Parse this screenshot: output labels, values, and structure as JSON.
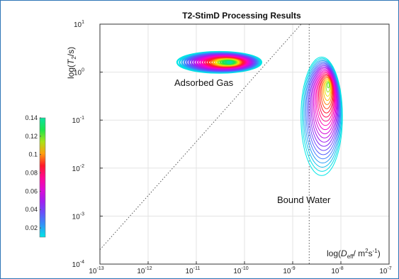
{
  "chart_data": {
    "type": "contour",
    "title": "T2-StimD Processing Results",
    "xlabel": {
      "prefix": "log(",
      "var": "D",
      "sub": "eff",
      "units": "/ m",
      "p1": "2",
      "mid": "s",
      "p2": "-1",
      "suffix": ")"
    },
    "ylabel": {
      "prefix": "log(",
      "var": "T",
      "sub": "2",
      "suffix": "/s)"
    },
    "x_scale": "log",
    "y_scale": "log",
    "xlim": [
      1e-13,
      1e-07
    ],
    "ylim": [
      0.0001,
      10
    ],
    "x_ticks": [
      {
        "base": "10",
        "exp": "-13",
        "value": 1e-13
      },
      {
        "base": "10",
        "exp": "-12",
        "value": 1e-12
      },
      {
        "base": "10",
        "exp": "-11",
        "value": 1e-11
      },
      {
        "base": "10",
        "exp": "-10",
        "value": 1e-10
      },
      {
        "base": "10",
        "exp": "-9",
        "value": 1e-09
      },
      {
        "base": "10",
        "exp": "-8",
        "value": 1e-08
      },
      {
        "base": "10",
        "exp": "-7",
        "value": 1e-07
      }
    ],
    "y_ticks": [
      {
        "base": "10",
        "exp": "-4",
        "value": 0.0001
      },
      {
        "base": "10",
        "exp": "-3",
        "value": 0.001
      },
      {
        "base": "10",
        "exp": "-2",
        "value": 0.01
      },
      {
        "base": "10",
        "exp": "-1",
        "value": 0.1
      },
      {
        "base": "10",
        "exp": "0",
        "value": 1
      },
      {
        "base": "10",
        "exp": "1",
        "value": 10
      }
    ],
    "grid": true,
    "reference_lines": [
      {
        "kind": "diagonal",
        "from": [
          1e-13,
          0.0002
        ],
        "to": [
          1.5e-09,
          10
        ]
      },
      {
        "kind": "vertical",
        "x": 2.2e-09
      }
    ],
    "colorbar": {
      "min": 0.01,
      "max": 0.14,
      "ticks": [
        "0.14",
        "0.12",
        "0.1",
        "0.08",
        "0.06",
        "0.04",
        "0.02"
      ],
      "tick_values": [
        0.14,
        0.12,
        0.1,
        0.08,
        0.06,
        0.04,
        0.02
      ]
    },
    "clusters": [
      {
        "label": "Adsorbed Gas",
        "center_x": 3e-11,
        "center_y": 1.6,
        "x_range": [
          4e-12,
          6e-11
        ],
        "y_range": [
          1.0,
          2.8
        ],
        "peak": 0.14
      },
      {
        "label": "Bound Water",
        "center_x": 4e-09,
        "center_y": 0.12,
        "x_range": [
          1.5e-09,
          1.5e-08
        ],
        "y_range": [
          0.007,
          0.25
        ],
        "peak": 0.12
      }
    ]
  }
}
